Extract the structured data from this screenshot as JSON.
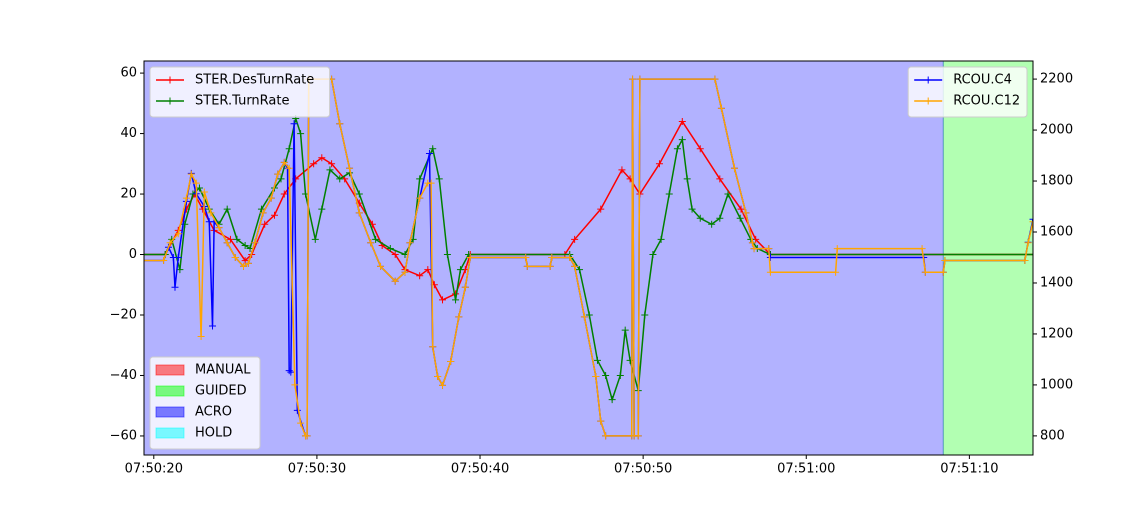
{
  "chart_data": {
    "type": "line",
    "xlim": [
      "07:50:19.4",
      "07:51:13.9"
    ],
    "xticks": [
      "07:50:20",
      "07:50:30",
      "07:50:40",
      "07:50:50",
      "07:51:00",
      "07:51:10"
    ],
    "ylim": [
      -66.3,
      64.0
    ],
    "yticks": [
      {
        "value": -60,
        "label": "−60"
      },
      {
        "value": -40,
        "label": "−40"
      },
      {
        "value": -20,
        "label": "−20"
      },
      0,
      20,
      40,
      60
    ],
    "y2lim": [
      725,
      2271
    ],
    "y2ticks": [
      800,
      1000,
      1200,
      1400,
      1600,
      1800,
      2000,
      2200
    ],
    "legend": "upper left",
    "legend2": "upper right",
    "modes_legend": "lower left",
    "modes": [
      {
        "name": "MANUAL",
        "color": "#ff0000",
        "spans": []
      },
      {
        "name": "GUIDED",
        "color": "#00ff00",
        "spans": [
          [
            "07:51:08.4",
            "07:51:13.9"
          ]
        ]
      },
      {
        "name": "ACRO",
        "color": "#0000ff",
        "spans": [
          [
            "07:50:19.4",
            "07:51:08.4"
          ]
        ]
      },
      {
        "name": "HOLD",
        "color": "#00ffff",
        "spans": []
      }
    ],
    "series": [
      {
        "name": "STER.DesTurnRate",
        "color": "#ff0000",
        "x": [
          "07:50:19.4",
          "07:50:20.7",
          "07:50:21.5",
          "07:50:22.0",
          "07:50:22.5",
          "07:50:23.0",
          "07:50:23.7",
          "07:50:24.7",
          "07:50:25.6",
          "07:50:26.0",
          "07:50:26.8",
          "07:50:27.4",
          "07:50:28.0",
          "07:50:28.7",
          "07:50:29.8",
          "07:50:30.3",
          "07:50:30.9",
          "07:50:31.7",
          "07:50:32.6",
          "07:50:33.4",
          "07:50:34.0",
          "07:50:34.8",
          "07:50:35.4",
          "07:50:36.3",
          "07:50:36.8",
          "07:50:37.2",
          "07:50:37.7",
          "07:50:38.5",
          "07:50:39.1",
          "07:50:39.4",
          "07:50:45.2",
          "07:50:45.8",
          "07:50:47.4",
          "07:50:48.7",
          "07:50:49.2",
          "07:50:49.8",
          "07:50:51.0",
          "07:50:52.4",
          "07:50:53.5",
          "07:50:54.7",
          "07:50:56.0",
          "07:50:56.9",
          "07:50:57.8",
          "07:51:13.9"
        ],
        "values": [
          0,
          0,
          8,
          15,
          20,
          15,
          8,
          5,
          -2,
          0,
          10,
          13,
          20,
          25,
          30,
          32,
          30,
          25,
          17,
          10,
          3,
          0,
          -5,
          -7,
          -5,
          -10,
          -15,
          -13,
          -5,
          0,
          0,
          5,
          15,
          28,
          25,
          20,
          30,
          44,
          35,
          25,
          15,
          5,
          0,
          0
        ]
      },
      {
        "name": "STER.TurnRate",
        "color": "#008000",
        "x": [
          "07:50:19.4",
          "07:50:20.7",
          "07:50:21.1",
          "07:50:21.6",
          "07:50:21.9",
          "07:50:22.4",
          "07:50:22.8",
          "07:50:23.4",
          "07:50:24.0",
          "07:50:24.5",
          "07:50:25.1",
          "07:50:25.6",
          "07:50:25.9",
          "07:50:26.6",
          "07:50:27.4",
          "07:50:27.8",
          "07:50:28.3",
          "07:50:28.7",
          "07:50:29.0",
          "07:50:29.3",
          "07:50:29.9",
          "07:50:30.3",
          "07:50:30.8",
          "07:50:31.4",
          "07:50:32.0",
          "07:50:32.6",
          "07:50:33.6",
          "07:50:34.5",
          "07:50:35.4",
          "07:50:35.9",
          "07:50:36.3",
          "07:50:37.1",
          "07:50:37.5",
          "07:50:38.0",
          "07:50:38.5",
          "07:50:38.8",
          "07:50:39.3",
          "07:50:45.5",
          "07:50:46.1",
          "07:50:46.7",
          "07:50:47.2",
          "07:50:47.7",
          "07:50:48.1",
          "07:50:48.6",
          "07:50:48.9",
          "07:50:49.2",
          "07:50:49.7",
          "07:50:50.1",
          "07:50:50.6",
          "07:50:51.1",
          "07:50:51.6",
          "07:50:52.1",
          "07:50:52.4",
          "07:50:52.7",
          "07:50:53.0",
          "07:50:53.5",
          "07:50:54.2",
          "07:50:54.7",
          "07:50:55.2",
          "07:50:55.95",
          "07:50:56.6",
          "07:50:57.0",
          "07:50:57.8",
          "07:51:13.9"
        ],
        "values": [
          0,
          0,
          5,
          -5,
          10,
          20,
          22,
          15,
          10,
          15,
          5,
          3,
          2,
          15,
          22,
          25,
          35,
          45,
          40,
          20,
          5,
          15,
          28,
          25,
          27,
          20,
          5,
          2,
          0,
          5,
          25,
          35,
          25,
          0,
          -15,
          -5,
          0,
          0,
          -5,
          -20,
          -35,
          -40,
          -48,
          -40,
          -25,
          -35,
          -45,
          -20,
          0,
          5,
          20,
          35,
          38,
          25,
          15,
          12,
          10,
          12,
          20,
          12,
          5,
          2,
          0,
          0
        ]
      },
      {
        "name": "RCOU.C4",
        "color": "#0000ff",
        "axis": "y2",
        "x": [
          "07:50:19.4",
          "07:50:20.6",
          "07:50:20.9",
          "07:50:21.2",
          "07:50:21.3",
          "07:50:21.5",
          "07:50:22.0",
          "07:50:22.3",
          "07:50:22.6",
          "07:50:23.1",
          "07:50:23.4",
          "07:50:23.6",
          "07:50:23.7",
          "07:50:24.0",
          "07:50:24.5",
          "07:50:25.0",
          "07:50:25.5",
          "07:50:25.8",
          "07:50:26.2",
          "07:50:26.7",
          "07:50:27.2",
          "07:50:27.6",
          "07:50:28.0",
          "07:50:28.2",
          "07:50:28.3",
          "07:50:28.4",
          "07:50:28.6",
          "07:50:28.8",
          "07:50:29.3",
          "07:50:29.4",
          "07:50:29.5",
          "07:50:30.9",
          "07:50:31.4",
          "07:50:32.0",
          "07:50:32.6",
          "07:50:33.3",
          "07:50:33.9",
          "07:50:34.8",
          "07:50:35.4",
          "07:50:35.7",
          "07:50:36.3",
          "07:50:36.9",
          "07:50:37.1",
          "07:50:37.4",
          "07:50:37.7",
          "07:50:38.2",
          "07:50:38.7",
          "07:50:39.1",
          "07:50:39.4",
          "07:50:42.8",
          "07:50:42.9",
          "07:50:44.3",
          "07:50:44.4",
          "07:50:45.5",
          "07:50:45.8",
          "07:50:46.4",
          "07:50:47.1",
          "07:50:47.4",
          "07:50:47.7",
          "07:50:49.3",
          "07:50:49.35",
          "07:50:49.45",
          "07:50:49.7",
          "07:50:49.8",
          "07:50:54.4",
          "07:50:54.8",
          "07:50:55.6",
          "07:50:56.3",
          "07:50:56.7",
          "07:50:56.8",
          "07:50:57.7",
          "07:50:57.8",
          "07:51:07.2",
          "07:51:07.3",
          "07:51:08.4",
          "07:51:08.5",
          "07:51:13.4",
          "07:51:13.6",
          "07:51:13.9"
        ],
        "values": [
          1488,
          1488,
          1540,
          1500,
          1383,
          1500,
          1720,
          1830,
          1750,
          1700,
          1640,
          1231,
          1640,
          1617,
          1558,
          1500,
          1465,
          1477,
          1558,
          1675,
          1733,
          1827,
          1873,
          1850,
          1056,
          1050,
          2025,
          900,
          800,
          800,
          2200,
          2200,
          2025,
          1850,
          1675,
          1558,
          1465,
          1407,
          1442,
          1558,
          1733,
          1908,
          1150,
          1033,
          998,
          1092,
          1267,
          1383,
          1500,
          1500,
          1465,
          1465,
          1500,
          1500,
          1465,
          1267,
          1033,
          858,
          800,
          800,
          2200,
          800,
          800,
          2200,
          2200,
          2085,
          1850,
          1675,
          1558,
          1535,
          1535,
          1500,
          1500,
          1442,
          1442,
          1488,
          1488,
          1560,
          1650
        ]
      },
      {
        "name": "RCOU.C12",
        "color": "#ffa500",
        "axis": "y2",
        "x": [
          "07:50:19.4",
          "07:50:20.6",
          "07:50:21.0",
          "07:50:21.5",
          "07:50:22.0",
          "07:50:22.3",
          "07:50:22.6",
          "07:50:22.9",
          "07:50:23.1",
          "07:50:23.5",
          "07:50:24.0",
          "07:50:24.5",
          "07:50:25.0",
          "07:50:25.5",
          "07:50:25.8",
          "07:50:26.2",
          "07:50:26.7",
          "07:50:27.2",
          "07:50:27.6",
          "07:50:28.0",
          "07:50:28.3",
          "07:50:28.65",
          "07:50:29.0",
          "07:50:29.3",
          "07:50:29.4",
          "07:50:29.5",
          "07:50:30.9",
          "07:50:31.4",
          "07:50:32.0",
          "07:50:32.6",
          "07:50:33.3",
          "07:50:33.9",
          "07:50:34.8",
          "07:50:35.4",
          "07:50:35.7",
          "07:50:36.3",
          "07:50:36.8",
          "07:50:37.0",
          "07:50:37.1",
          "07:50:37.4",
          "07:50:37.7",
          "07:50:38.2",
          "07:50:38.7",
          "07:50:39.1",
          "07:50:39.4",
          "07:50:42.8",
          "07:50:42.9",
          "07:50:44.3",
          "07:50:44.4",
          "07:50:45.5",
          "07:50:45.8",
          "07:50:46.4",
          "07:50:47.1",
          "07:50:47.4",
          "07:50:47.7",
          "07:50:49.3",
          "07:50:49.35",
          "07:50:49.45",
          "07:50:49.7",
          "07:50:49.8",
          "07:50:54.4",
          "07:50:54.8",
          "07:50:55.6",
          "07:50:56.3",
          "07:50:56.7",
          "07:50:56.8",
          "07:50:57.7",
          "07:50:57.8",
          "07:51:01.8",
          "07:51:01.9",
          "07:51:07.1",
          "07:51:07.3",
          "07:51:08.4",
          "07:51:08.5",
          "07:51:13.4",
          "07:51:13.6",
          "07:51:13.9"
        ],
        "values": [
          1488,
          1488,
          1558,
          1593,
          1733,
          1827,
          1792,
          1190,
          1757,
          1675,
          1617,
          1558,
          1500,
          1465,
          1477,
          1558,
          1675,
          1733,
          1827,
          1873,
          1850,
          1000,
          850,
          800,
          800,
          2200,
          2200,
          2025,
          1850,
          1675,
          1558,
          1465,
          1407,
          1442,
          1558,
          1733,
          1792,
          1792,
          1150,
          1033,
          998,
          1092,
          1267,
          1383,
          1500,
          1500,
          1465,
          1465,
          1500,
          1500,
          1465,
          1267,
          1033,
          858,
          800,
          800,
          2200,
          800,
          800,
          2200,
          2200,
          2085,
          1850,
          1675,
          1558,
          1535,
          1535,
          1442,
          1442,
          1535,
          1535,
          1442,
          1442,
          1488,
          1488,
          1558,
          1640
        ]
      }
    ]
  }
}
